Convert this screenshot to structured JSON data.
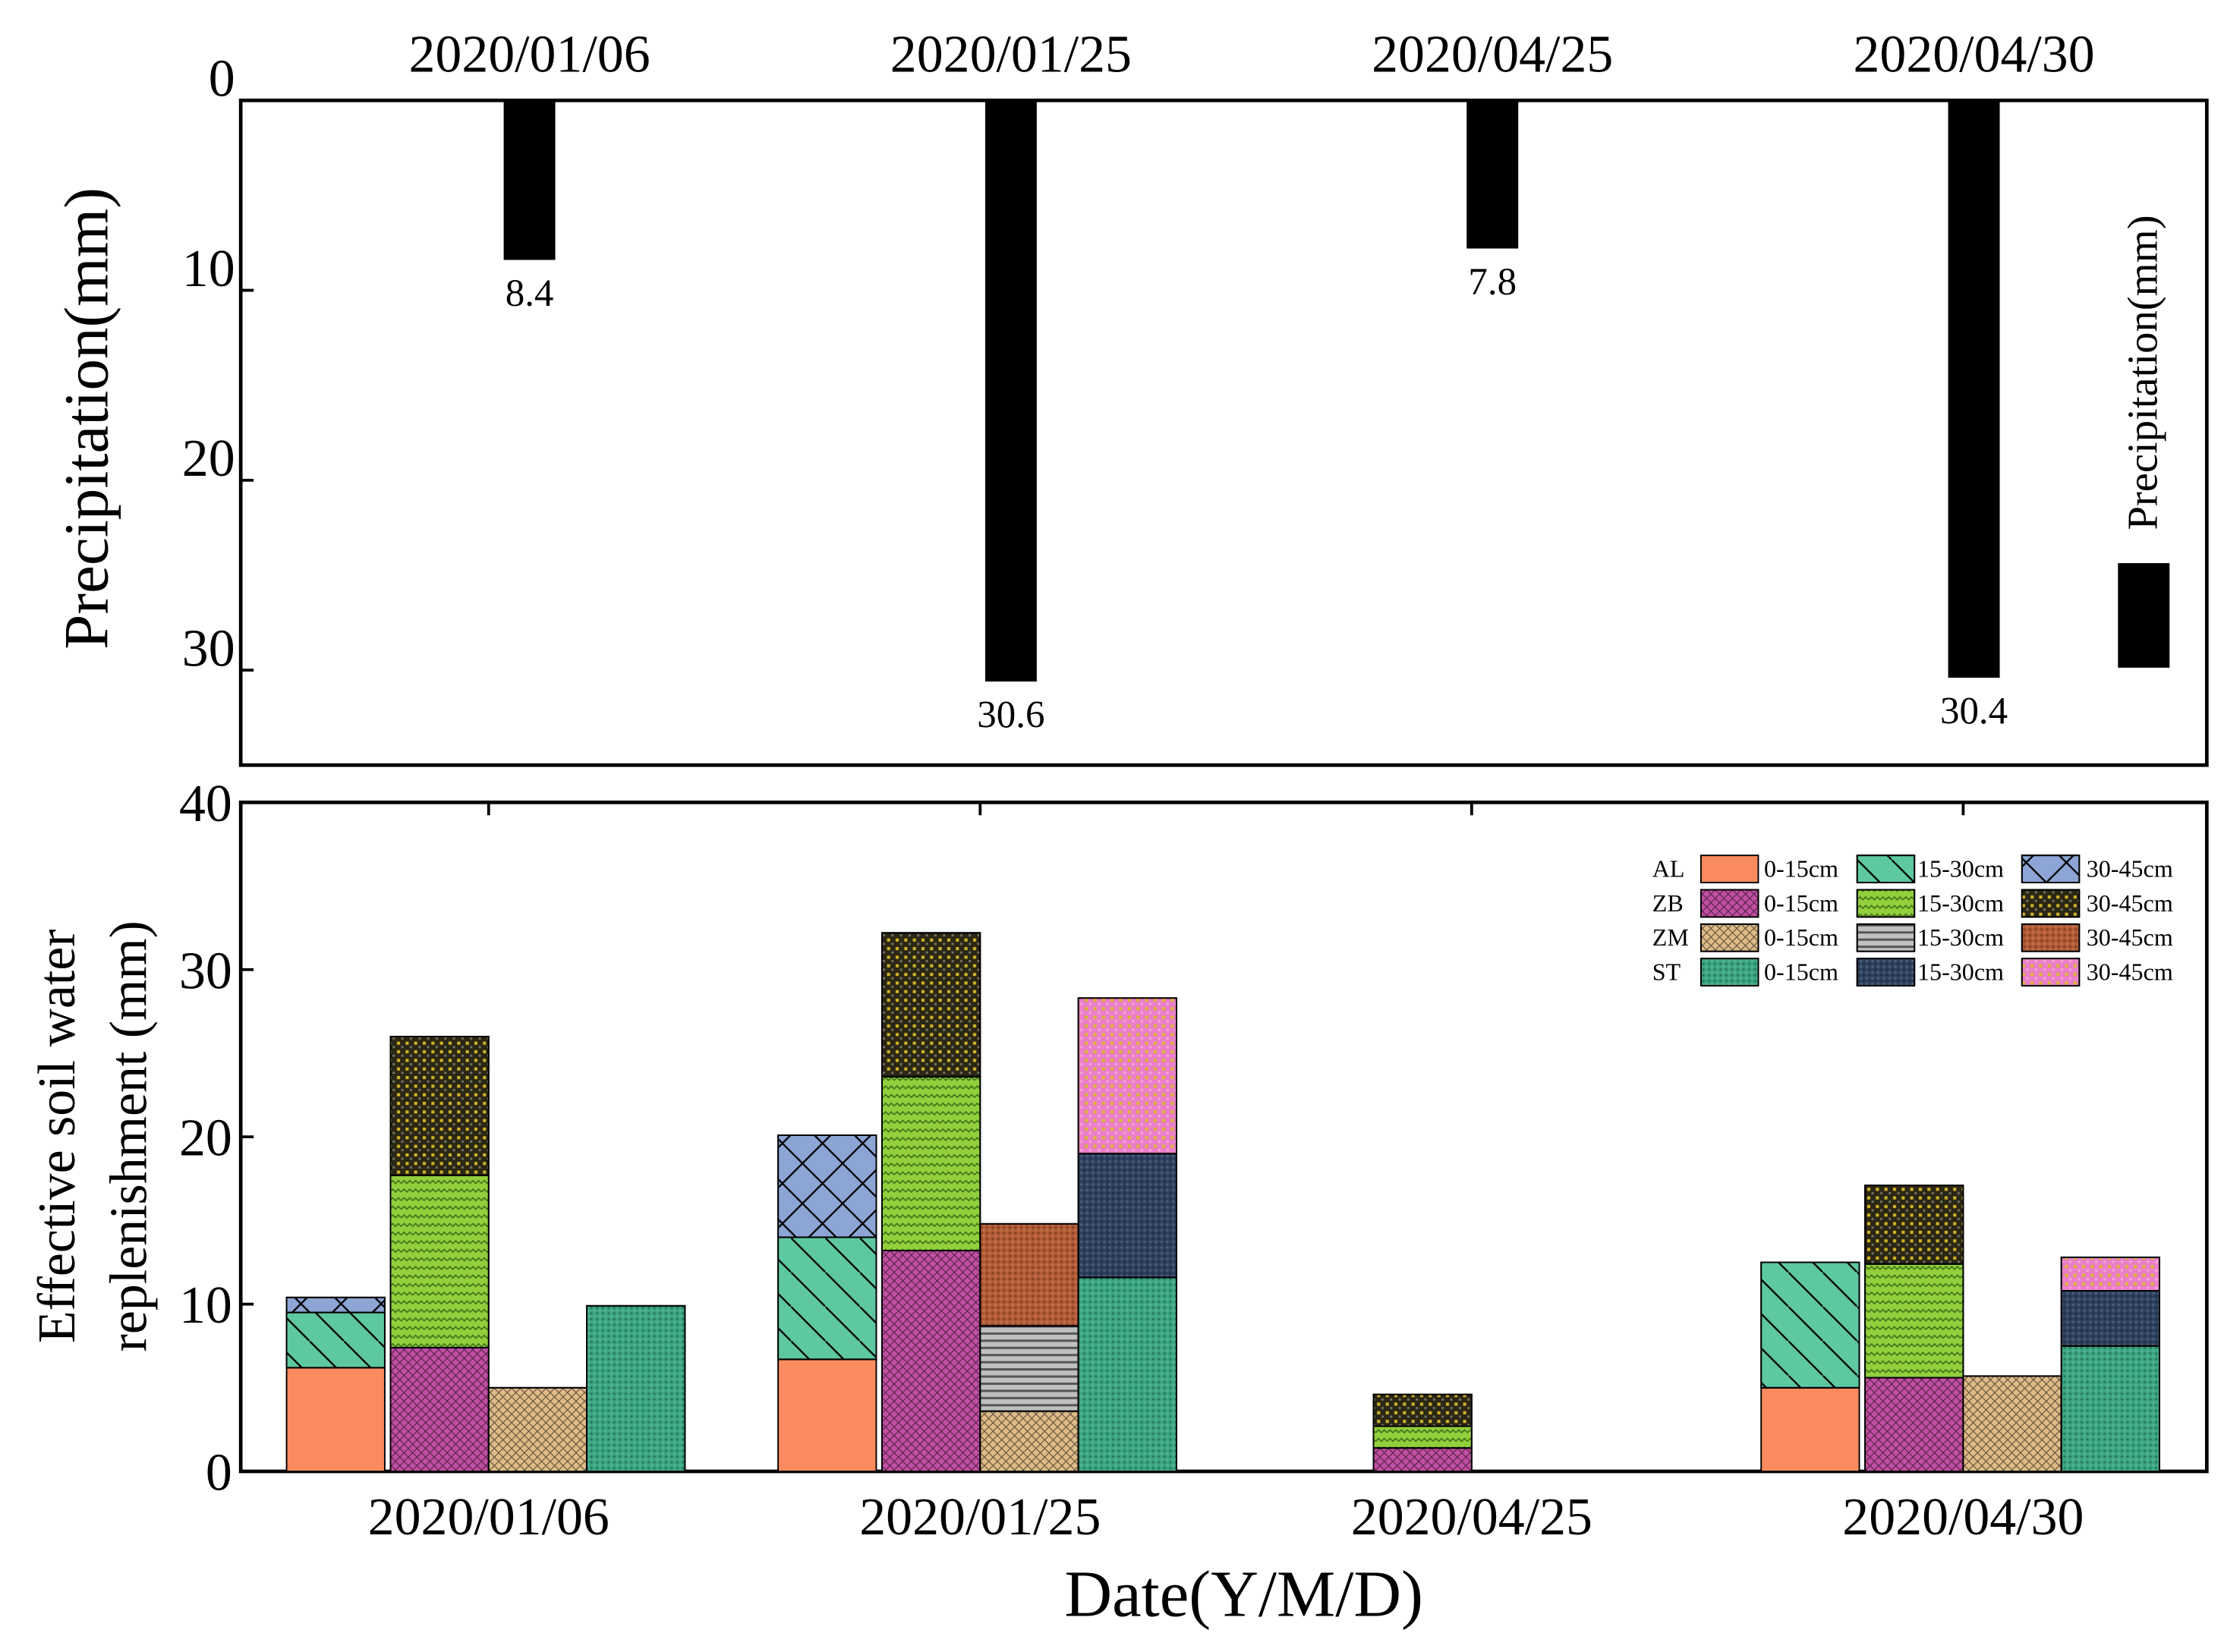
{
  "chart_data": [
    {
      "type": "bar",
      "title": "",
      "categories": [
        "2020/01/06",
        "2020/01/25",
        "2020/04/25",
        "2020/04/30"
      ],
      "values": [
        8.4,
        30.6,
        7.8,
        30.4
      ],
      "value_labels": [
        "8.4",
        "30.6",
        "7.8",
        "30.4"
      ],
      "ylabel": "Precipitation(mm)",
      "ylim": [
        0,
        35
      ],
      "yticks": [
        "0",
        "10",
        "20",
        "30"
      ],
      "axis_inverted": true,
      "legend": {
        "label": "Precipitation(mm)",
        "color": "#000000",
        "placement": "right"
      }
    },
    {
      "type": "stacked-bar",
      "title": "",
      "categories": [
        "2020/01/06",
        "2020/01/25",
        "2020/04/25",
        "2020/04/30"
      ],
      "xlabel": "Date(Y/M/D)",
      "ylabel_lines": [
        "Effective soil water",
        "replenishment (mm)"
      ],
      "ylim": [
        0,
        40
      ],
      "yticks": [
        "0",
        "10",
        "20",
        "30",
        "40"
      ],
      "layer_labels": [
        "0-15cm",
        "15-30cm",
        "30-45cm"
      ],
      "groups": [
        {
          "name": "AL",
          "colors": [
            "#fa8b5e",
            "#5ec8a0",
            "#8ca5d5"
          ],
          "patterns": [
            "solid",
            "diag",
            "cross"
          ],
          "values": [
            [
              6.2,
              3.3,
              0.9
            ],
            [
              6.7,
              7.3,
              6.1
            ],
            [
              0,
              0,
              0
            ],
            [
              5.0,
              7.5,
              0
            ]
          ]
        },
        {
          "name": "ZB",
          "colors": [
            "#c24fa3",
            "#92cf3c",
            "#2b2714"
          ],
          "patterns": [
            "check",
            "wave",
            "dots"
          ],
          "values": [
            [
              7.4,
              10.3,
              8.3
            ],
            [
              13.2,
              10.4,
              8.6
            ],
            [
              1.4,
              1.3,
              1.9
            ],
            [
              5.6,
              6.8,
              4.7
            ]
          ]
        },
        {
          "name": "ZM",
          "colors": [
            "#dfbb88",
            "#bfbfbf",
            "#b35a35"
          ],
          "patterns": [
            "check",
            "hlines",
            "fine"
          ],
          "values": [
            [
              5.0,
              0,
              0
            ],
            [
              3.6,
              5.1,
              6.1
            ],
            [
              0,
              0,
              0
            ],
            [
              5.7,
              0,
              0
            ]
          ]
        },
        {
          "name": "ST",
          "colors": [
            "#3aa582",
            "#2e4160",
            "#eb7fc8"
          ],
          "patterns": [
            "fine",
            "fine",
            "dots"
          ],
          "values": [
            [
              9.9,
              0,
              0
            ],
            [
              11.6,
              7.4,
              9.3
            ],
            [
              0,
              0,
              0
            ],
            [
              7.5,
              3.3,
              2.0
            ]
          ]
        }
      ],
      "legend": {
        "placement": "top-right"
      }
    }
  ]
}
